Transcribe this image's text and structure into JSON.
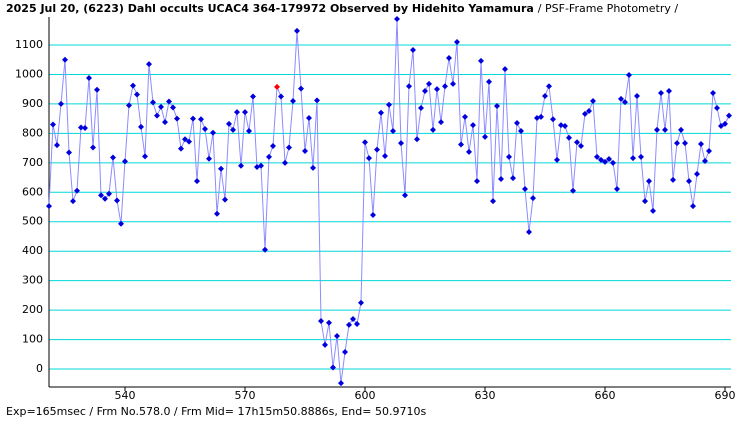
{
  "chart_data": {
    "type": "line",
    "title": "2025 Jul 20, (6223) Dahl occults UCAC4 364-179972 Observed by Hidehito Yamamura",
    "subtitle": "/ PSF-Frame Photometry /",
    "footer": "Exp=165msec / Frm No.578.0 / Frm Mid= 17h15m50.8886s, End= 50.9710s",
    "xlim": [
      521,
      691.5
    ],
    "ylim": [
      -61,
      1195
    ],
    "xticks": [
      540,
      570,
      600,
      630,
      660,
      690
    ],
    "yticks": [
      0,
      100,
      200,
      300,
      400,
      500,
      600,
      700,
      800,
      900,
      1000,
      1100
    ],
    "grid": true,
    "grid_color": "#00d8d8",
    "highlight_x": 578,
    "highlight_color": "#ff0000",
    "x": [
      521,
      522,
      523,
      524,
      525,
      526,
      527,
      528,
      529,
      530,
      531,
      532,
      533,
      534,
      535,
      536,
      537,
      538,
      539,
      540,
      541,
      542,
      543,
      544,
      545,
      546,
      547,
      548,
      549,
      550,
      551,
      552,
      553,
      554,
      555,
      556,
      557,
      558,
      559,
      560,
      561,
      562,
      563,
      564,
      565,
      566,
      567,
      568,
      569,
      570,
      571,
      572,
      573,
      574,
      575,
      576,
      577,
      578,
      579,
      580,
      581,
      582,
      583,
      584,
      585,
      586,
      587,
      588,
      589,
      590,
      591,
      592,
      593,
      594,
      595,
      596,
      597,
      598,
      599,
      600,
      601,
      602,
      603,
      604,
      605,
      606,
      607,
      608,
      609,
      610,
      611,
      612,
      613,
      614,
      615,
      616,
      617,
      618,
      619,
      620,
      621,
      622,
      623,
      624,
      625,
      626,
      627,
      628,
      629,
      630,
      631,
      632,
      633,
      634,
      635,
      636,
      637,
      638,
      639,
      640,
      641,
      642,
      643,
      644,
      645,
      646,
      647,
      648,
      649,
      650,
      651,
      652,
      653,
      654,
      655,
      656,
      657,
      658,
      659,
      660,
      661,
      662,
      663,
      664,
      665,
      666,
      667,
      668,
      669,
      670,
      671,
      672,
      673,
      674,
      675,
      676,
      677,
      678,
      679,
      680,
      681,
      682,
      683,
      684,
      685,
      686,
      687,
      688,
      689,
      690,
      691
    ],
    "series": [
      {
        "color": "#0000dd",
        "line_color": "#8c8cff",
        "values": [
          553,
          830,
          760,
          900,
          1050,
          735,
          570,
          605,
          820,
          818,
          988,
          752,
          948,
          590,
          578,
          595,
          718,
          572,
          493,
          705,
          895,
          962,
          932,
          822,
          722,
          1035,
          905,
          860,
          890,
          838,
          908,
          888,
          850,
          748,
          780,
          772,
          850,
          638,
          848,
          815,
          714,
          802,
          527,
          680,
          575,
          832,
          812,
          872,
          690,
          872,
          808,
          925,
          686,
          690,
          405,
          720,
          757,
          958,
          925,
          700,
          752,
          910,
          1148,
          952,
          740,
          852,
          683,
          912,
          163,
          82,
          157,
          5,
          112,
          -48,
          58,
          150,
          170,
          153,
          225,
          770,
          716,
          523,
          745,
          870,
          723,
          897,
          808,
          1188,
          767,
          590,
          960,
          1083,
          780,
          886,
          944,
          968,
          812,
          950,
          838,
          960,
          1056,
          968,
          1110,
          762,
          856,
          737,
          828,
          638,
          1046,
          788,
          975,
          570,
          893,
          645,
          1018,
          720,
          648,
          835,
          808,
          611,
          465,
          580,
          852,
          856,
          927,
          960,
          848,
          710,
          828,
          825,
          785,
          605,
          770,
          757,
          866,
          876,
          910,
          720,
          710,
          703,
          713,
          700,
          611,
          917,
          906,
          998,
          716,
          927,
          720,
          570,
          638,
          537,
          812,
          937,
          812,
          944,
          642,
          767,
          812,
          767,
          638,
          553,
          662,
          764,
          706,
          740,
          937,
          886,
          825,
          832,
          860
        ]
      }
    ]
  }
}
